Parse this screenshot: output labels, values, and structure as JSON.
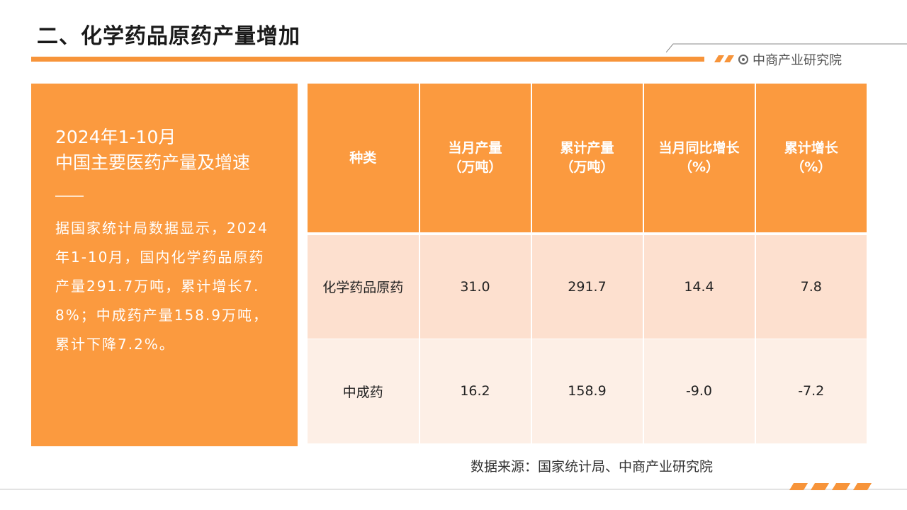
{
  "title": "二、化学药品原药产量增加",
  "brand": {
    "name": "中商产业研究院",
    "icon": "target-circle-icon"
  },
  "colors": {
    "accent": "#f7943a",
    "panel": "#fb9a3f",
    "row1": "#fde0cf",
    "row2": "#fdefe6"
  },
  "panel": {
    "heading": "2024年1-10月",
    "subheading": "中国主要医药产量及增速",
    "body": "据国家统计局数据显示，2024年1-10月，国内化学药品原药产量291.7万吨，累计增长7.8%；中成药产量158.9万吨，累计下降7.2%。"
  },
  "table": {
    "headers": [
      {
        "line1": "种类",
        "line2": ""
      },
      {
        "line1": "当月产量",
        "line2": "（万吨）"
      },
      {
        "line1": "累计产量",
        "line2": "（万吨）"
      },
      {
        "line1": "当月同比增长",
        "line2": "（%）"
      },
      {
        "line1": "累计增长",
        "line2": "（%）"
      }
    ],
    "rows": [
      {
        "name": "化学药品原药",
        "monthly": "31.0",
        "cumulative": "291.7",
        "yoy": "14.4",
        "cum_growth": "7.8"
      },
      {
        "name": "中成药",
        "monthly": "16.2",
        "cumulative": "158.9",
        "yoy": "-9.0",
        "cum_growth": "-7.2"
      }
    ]
  },
  "source": "数据来源：国家统计局、中商产业研究院"
}
